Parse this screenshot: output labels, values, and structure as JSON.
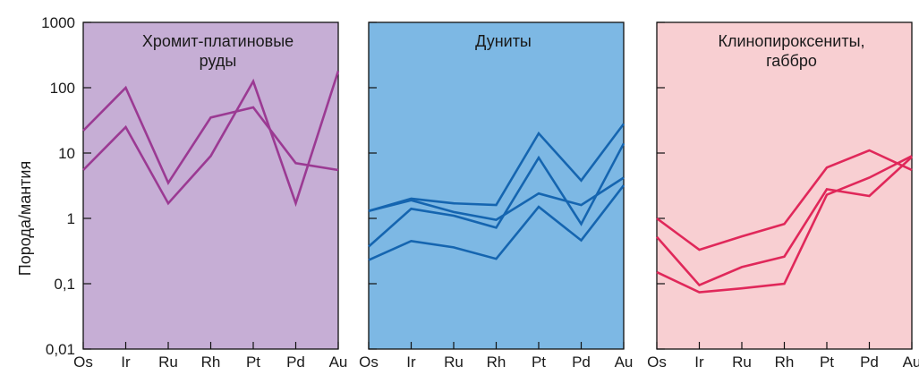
{
  "chart_data": {
    "type": "line",
    "ylabel": "Порода/мантия",
    "yscale": "log",
    "ylim": [
      0.01,
      1000
    ],
    "yticks": [
      {
        "value": 1000,
        "label": "1000"
      },
      {
        "value": 100,
        "label": "100"
      },
      {
        "value": 10,
        "label": "10"
      },
      {
        "value": 1,
        "label": "1"
      },
      {
        "value": 0.1,
        "label": "0,1"
      },
      {
        "value": 0.01,
        "label": "0,01"
      }
    ],
    "categories": [
      "Os",
      "Ir",
      "Ru",
      "Rh",
      "Pt",
      "Pd",
      "Au"
    ],
    "grid": false,
    "panels": [
      {
        "title_lines": [
          "Хромит-платиновые",
          "руды"
        ],
        "background": "#c6aed5",
        "line_color": "#9b3a93",
        "series": [
          {
            "values": [
              22,
              100,
              3.5,
              35,
              50,
              7,
              5.5
            ]
          },
          {
            "values": [
              5.5,
              25,
              1.7,
              9,
              125,
              1.7,
              180
            ]
          }
        ]
      },
      {
        "title_lines": [
          "Дуниты"
        ],
        "background": "#7db8e4",
        "line_color": "#1565b0",
        "series": [
          {
            "values": [
              1.3,
              2,
              1.7,
              1.6,
              20,
              3.8,
              28
            ]
          },
          {
            "values": [
              1.3,
              1.9,
              1.25,
              0.95,
              2.4,
              1.6,
              4.2
            ]
          },
          {
            "values": [
              0.37,
              1.4,
              1.1,
              0.72,
              8.5,
              0.82,
              14
            ]
          },
          {
            "values": [
              0.23,
              0.45,
              0.36,
              0.24,
              1.5,
              0.46,
              3.2
            ]
          }
        ]
      },
      {
        "title_lines": [
          "Клинопироксениты,",
          "габбро"
        ],
        "background": "#f8cfd2",
        "line_color": "#e0285a",
        "series": [
          {
            "values": [
              1,
              0.33,
              0.53,
              0.82,
              6,
              11,
              5.5
            ]
          },
          {
            "values": [
              0.52,
              0.095,
              0.18,
              0.26,
              2.8,
              2.2,
              8.7
            ]
          },
          {
            "values": [
              0.15,
              0.074,
              0.085,
              0.1,
              2.3,
              4.2,
              9
            ]
          }
        ]
      }
    ]
  }
}
